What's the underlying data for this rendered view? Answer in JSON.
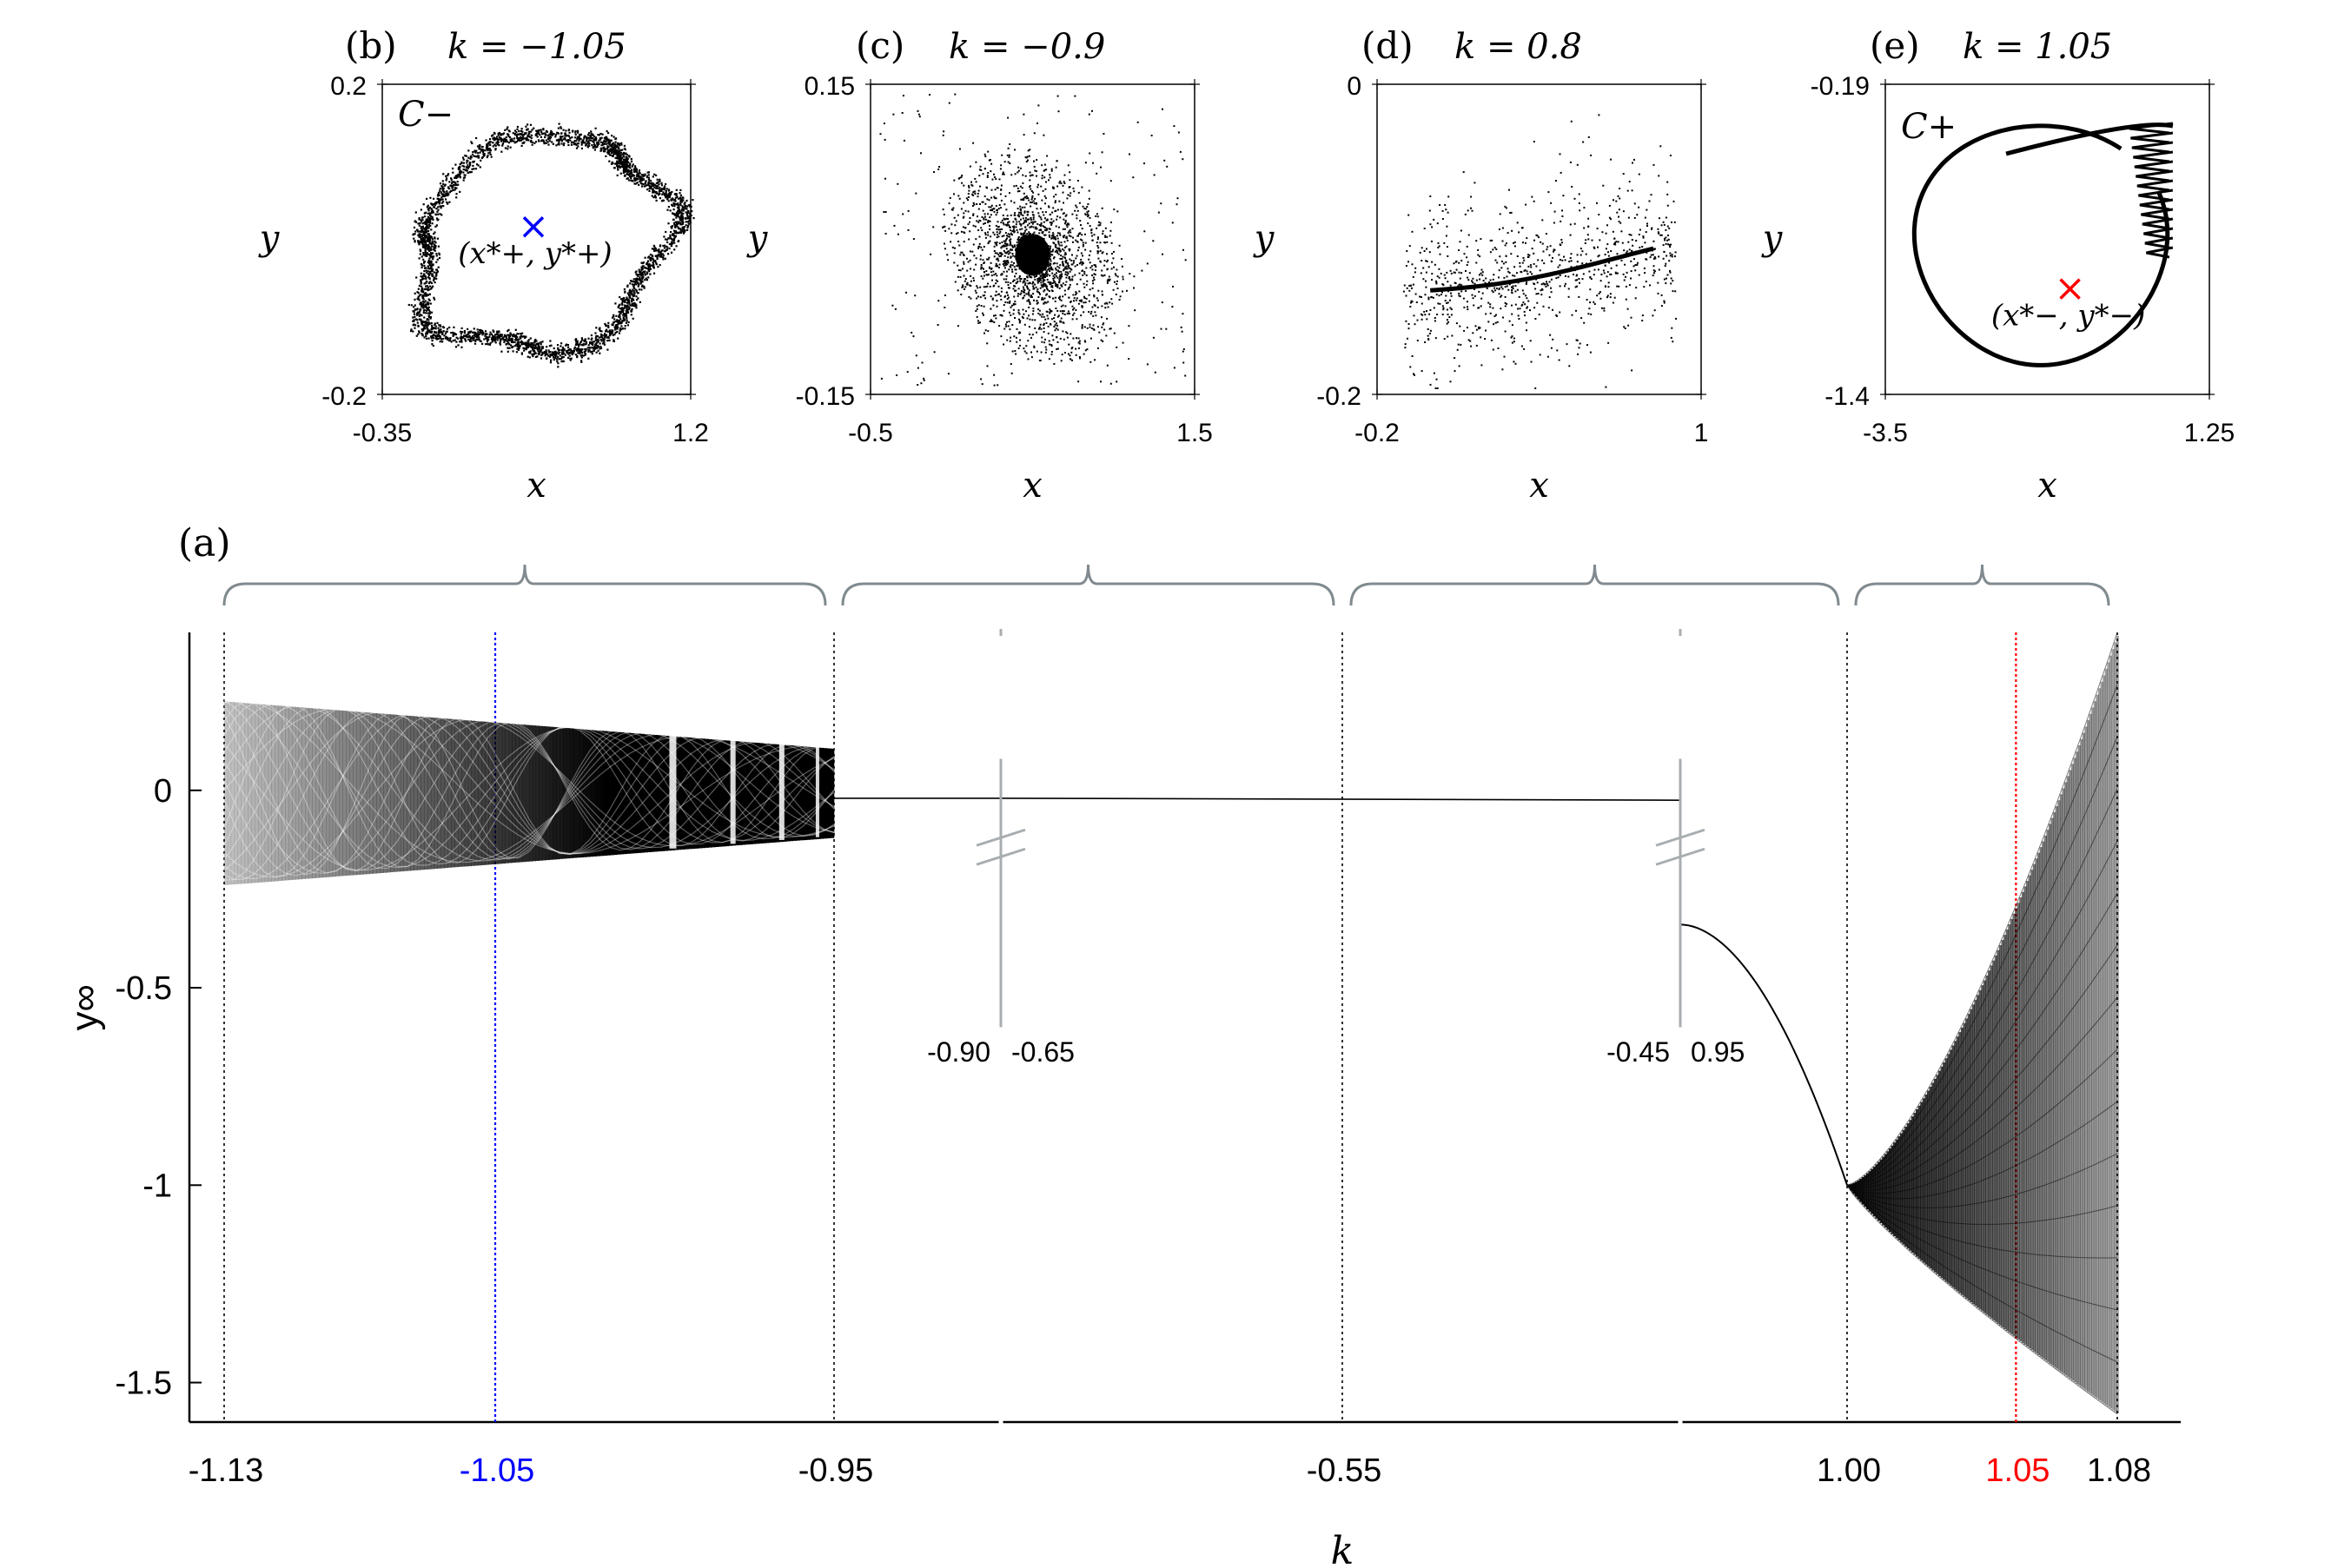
{
  "panel_labels": {
    "a": "(a)",
    "b": "(b)",
    "c": "(c)",
    "d": "(d)",
    "e": "(e)"
  },
  "chart_data": [
    {
      "id": "b",
      "type": "scatter",
      "title": "k = −1.05",
      "xlabel": "x",
      "ylabel": "y",
      "xlim": [
        -0.35,
        1.2
      ],
      "ylim": [
        -0.2,
        0.2
      ],
      "xtick_labels": [
        "-0.35",
        "1.2"
      ],
      "ytick_labels": [
        "0.2",
        "-0.2"
      ],
      "attractor_label": "C−",
      "fixed_point": {
        "label": "(x*+, y*+)",
        "color": "#0000ff"
      },
      "shape": "thick chaotic ring"
    },
    {
      "id": "c",
      "type": "scatter",
      "title": "k = −0.9",
      "xlabel": "x",
      "ylabel": "y",
      "xlim": [
        -0.5,
        1.5
      ],
      "ylim": [
        -0.15,
        0.15
      ],
      "xtick_labels": [
        "-0.5",
        "1.5"
      ],
      "ytick_labels": [
        "0.15",
        "-0.15"
      ],
      "shape": "spiral toward focus"
    },
    {
      "id": "d",
      "type": "scatter",
      "title": "k = 0.8",
      "xlabel": "x",
      "ylabel": "y",
      "xlim": [
        -0.2,
        1
      ],
      "ylim": [
        -0.2,
        0
      ],
      "xtick_labels": [
        "-0.2",
        "1"
      ],
      "ytick_labels": [
        "0",
        "-0.2"
      ],
      "shape": "points converging onto a line"
    },
    {
      "id": "e",
      "type": "scatter",
      "title": "k = 1.05",
      "xlabel": "x",
      "ylabel": "y",
      "xlim": [
        -3.5,
        1.25
      ],
      "ylim": [
        -1.4,
        -0.19
      ],
      "xtick_labels": [
        "-3.5",
        "1.25"
      ],
      "ytick_labels": [
        "-0.19",
        "-1.4"
      ],
      "attractor_label": "C+",
      "fixed_point": {
        "label": "(x*−, y*−)",
        "color": "#ff0000"
      },
      "shape": "teardrop loop with sawtooth edge"
    },
    {
      "id": "a",
      "type": "bifurcation",
      "xlabel": "k",
      "ylabel": "y∞",
      "ylim": [
        -1.6,
        0.4
      ],
      "yticks": [
        0,
        -0.5,
        -1,
        -1.5
      ],
      "ytick_labels": [
        "0",
        "-0.5",
        "-1",
        "-1.5"
      ],
      "xtick_labels": [
        {
          "text": "-1.13",
          "k": -1.13,
          "color": "#000000"
        },
        {
          "text": "-1.05",
          "k": -1.05,
          "color": "#0000ff"
        },
        {
          "text": "-0.95",
          "k": -0.95,
          "color": "#000000"
        },
        {
          "text": "-0.55",
          "k": -0.55,
          "color": "#000000"
        },
        {
          "text": "1.00",
          "k": 1.0,
          "color": "#000000"
        },
        {
          "text": "1.05",
          "k": 1.05,
          "color": "#ff0000"
        },
        {
          "text": "1.08",
          "k": 1.08,
          "color": "#000000"
        }
      ],
      "axis_breaks": [
        {
          "left_label": "-0.90",
          "right_label": "-0.65"
        },
        {
          "left_label": "-0.45",
          "right_label": "0.95"
        }
      ],
      "reference_lines": [
        {
          "k": -1.05,
          "color": "#0000ff"
        },
        {
          "k": 1.05,
          "color": "#ff0000"
        }
      ],
      "regions": [
        {
          "k_range": [
            -1.13,
            -0.95
          ],
          "panel": "b",
          "behavior": "chaotic band"
        },
        {
          "k_range": [
            -0.95,
            -0.55
          ],
          "panel": "c",
          "behavior": "stable fixed point"
        },
        {
          "k_range": [
            -0.55,
            1.0
          ],
          "panel": "d",
          "behavior": "stable fixed point"
        },
        {
          "k_range": [
            1.0,
            1.08
          ],
          "panel": "e",
          "behavior": "chaotic band"
        }
      ]
    }
  ]
}
